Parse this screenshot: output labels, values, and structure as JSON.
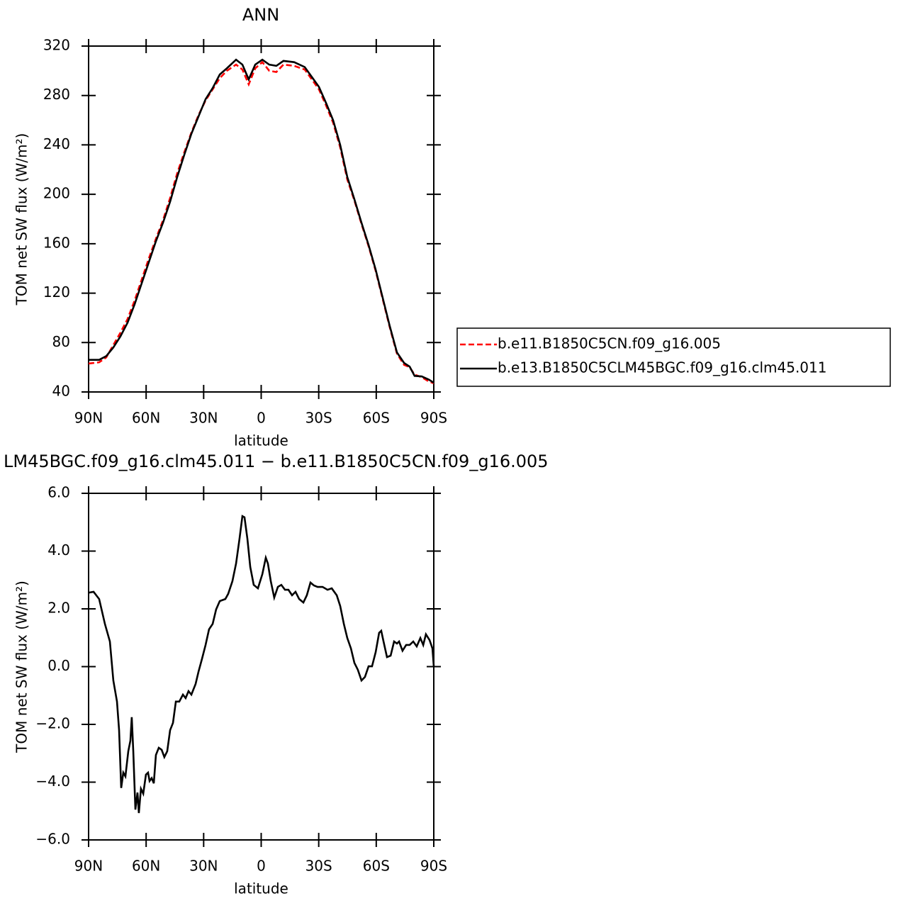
{
  "chart_data": [
    {
      "type": "line",
      "title": "ANN",
      "xlabel": "latitude",
      "ylabel": "TOM net SW flux (W/m²)",
      "x": [
        90,
        84.5,
        80.8,
        77.1,
        73.4,
        69.7,
        66.0,
        62.3,
        58.6,
        54.9,
        51.2,
        47.5,
        43.8,
        40.1,
        36.4,
        32.7,
        29.0,
        25.3,
        21.6,
        17.9,
        13.1,
        9.8,
        6.5,
        3.1,
        -0.6,
        -4.2,
        -7.9,
        -11.6,
        -17.2,
        -22.7,
        -26.4,
        -30.1,
        -33.8,
        -37.5,
        -41.2,
        -44.9,
        -48.6,
        -52.3,
        -56.0,
        -59.7,
        -63.4,
        -67.1,
        -70.8,
        -74.5,
        -77.4,
        -80.0,
        -83.7,
        -87.4,
        -90
      ],
      "series": [
        {
          "name": "b.e11.B1850C5CN.f09_g16.005",
          "color": "#ff0000",
          "linestyle": "dashed",
          "values": [
            63,
            64,
            68,
            78,
            88,
            99,
            114,
            131,
            148,
            164,
            179,
            197,
            217,
            234,
            250,
            264,
            276,
            285,
            294,
            300,
            305,
            301,
            289,
            302,
            307,
            300,
            299,
            305,
            304,
            301,
            293,
            285,
            272,
            258,
            238,
            212,
            195,
            176,
            158,
            138,
            115,
            92,
            71,
            62,
            60,
            54,
            52,
            48.5,
            47
          ]
        },
        {
          "name": "b.e13.B1850C5CLM45BGC.f09_g16.clm45.011",
          "color": "#000000",
          "linestyle": "solid",
          "values": [
            66,
            66,
            69,
            76,
            85,
            96,
            111,
            128,
            145,
            162,
            177,
            194,
            214,
            232,
            249,
            263,
            277,
            286,
            297,
            302,
            309,
            305,
            293,
            305,
            309,
            305,
            304,
            308,
            307,
            303,
            295,
            287,
            274,
            260,
            240,
            214,
            196,
            177,
            159,
            139,
            116,
            93,
            72,
            63.5,
            60.6,
            53,
            52.6,
            50,
            47.5
          ]
        }
      ],
      "xlim": [
        90,
        -90
      ],
      "xticks": [
        {
          "value": 90,
          "label": "90N"
        },
        {
          "value": 60,
          "label": "60N"
        },
        {
          "value": 30,
          "label": "30N"
        },
        0,
        {
          "value": -30,
          "label": "30S"
        },
        {
          "value": -60,
          "label": "60S"
        },
        {
          "value": -90,
          "label": "90S"
        }
      ],
      "ylim": [
        40,
        320
      ],
      "yticks": [
        40,
        80,
        120,
        160,
        200,
        240,
        280,
        320
      ],
      "legend": "right"
    },
    {
      "type": "line",
      "title": "LM45BGC.f09_g16.clm45.011 − b.e11.B1850C5CN.f09_g16.005",
      "xlabel": "latitude",
      "ylabel": "TOM net SW flux (W/m²)",
      "x": [
        90,
        87.4,
        84.5,
        81.5,
        78.9,
        77.1,
        75.2,
        74.1,
        73.0,
        71.9,
        70.8,
        69.3,
        68.2,
        67.5,
        66.7,
        65.6,
        64.5,
        63.8,
        62.7,
        61.5,
        60.1,
        59.0,
        58.2,
        57.1,
        56.0,
        54.9,
        53.4,
        51.9,
        50.5,
        49.0,
        47.5,
        46.0,
        44.5,
        42.7,
        40.8,
        39.4,
        37.9,
        36.4,
        34.2,
        32.7,
        30.9,
        29.0,
        27.2,
        25.3,
        23.5,
        21.6,
        18.7,
        17.2,
        15.0,
        13.1,
        11.3,
        9.8,
        8.7,
        7.2,
        5.7,
        3.9,
        1.7,
        -0.6,
        -2.4,
        -3.5,
        -5.0,
        -6.8,
        -8.7,
        -10.5,
        -12.4,
        -14.2,
        -16.1,
        -17.9,
        -19.8,
        -22.0,
        -23.8,
        -25.7,
        -27.5,
        -29.4,
        -32.0,
        -34.6,
        -36.8,
        -39.4,
        -41.2,
        -43.1,
        -44.9,
        -46.8,
        -48.6,
        -50.4,
        -52.3,
        -54.1,
        -56.0,
        -57.8,
        -59.7,
        -61.5,
        -62.6,
        -63.8,
        -65.6,
        -67.5,
        -69.3,
        -70.8,
        -71.9,
        -73.7,
        -75.6,
        -77.4,
        -79.3,
        -81.1,
        -83.0,
        -84.5,
        -85.9,
        -87.8,
        -89.3,
        -90
      ],
      "series": [
        {
          "color": "#000000",
          "linestyle": "solid",
          "values": [
            2.56,
            2.59,
            2.34,
            1.48,
            0.87,
            -0.48,
            -1.21,
            -2.2,
            -4.2,
            -3.67,
            -3.8,
            -2.93,
            -2.56,
            -1.75,
            -2.93,
            -4.95,
            -4.36,
            -5.07,
            -4.23,
            -4.4,
            -3.74,
            -3.67,
            -3.96,
            -3.86,
            -4.04,
            -3.06,
            -2.81,
            -2.88,
            -3.13,
            -2.93,
            -2.2,
            -1.95,
            -1.21,
            -1.21,
            -0.97,
            -1.09,
            -0.85,
            -0.97,
            -0.6,
            -0.18,
            0.26,
            0.75,
            1.29,
            1.48,
            1.98,
            2.27,
            2.34,
            2.52,
            2.96,
            3.57,
            4.43,
            5.21,
            5.17,
            4.43,
            3.45,
            2.83,
            2.71,
            3.2,
            3.77,
            3.57,
            2.96,
            2.39,
            2.76,
            2.83,
            2.66,
            2.66,
            2.47,
            2.59,
            2.34,
            2.22,
            2.47,
            2.91,
            2.81,
            2.76,
            2.76,
            2.66,
            2.71,
            2.47,
            2.1,
            1.48,
            0.99,
            0.63,
            0.13,
            -0.11,
            -0.48,
            -0.36,
            0.01,
            0.01,
            0.5,
            1.17,
            1.24,
            0.87,
            0.33,
            0.38,
            0.87,
            0.8,
            0.87,
            0.55,
            0.75,
            0.75,
            0.87,
            0.7,
            0.99,
            0.75,
            1.12,
            0.92,
            0.63,
            0.01
          ]
        }
      ],
      "xlim": [
        90,
        -90
      ],
      "xticks": [
        {
          "value": 90,
          "label": "90N"
        },
        {
          "value": 60,
          "label": "60N"
        },
        {
          "value": 30,
          "label": "30N"
        },
        0,
        {
          "value": -30,
          "label": "30S"
        },
        {
          "value": -60,
          "label": "60S"
        },
        {
          "value": -90,
          "label": "90S"
        }
      ],
      "ylim": [
        -6,
        6
      ],
      "yticks": [
        {
          "value": -6,
          "label": "−6.0"
        },
        {
          "value": -4,
          "label": "−4.0"
        },
        {
          "value": -2,
          "label": "−2.0"
        },
        {
          "value": 0,
          "label": "0.0"
        },
        {
          "value": 2,
          "label": "2.0"
        },
        {
          "value": 4,
          "label": "4.0"
        },
        {
          "value": 6,
          "label": "6.0"
        }
      ]
    }
  ]
}
